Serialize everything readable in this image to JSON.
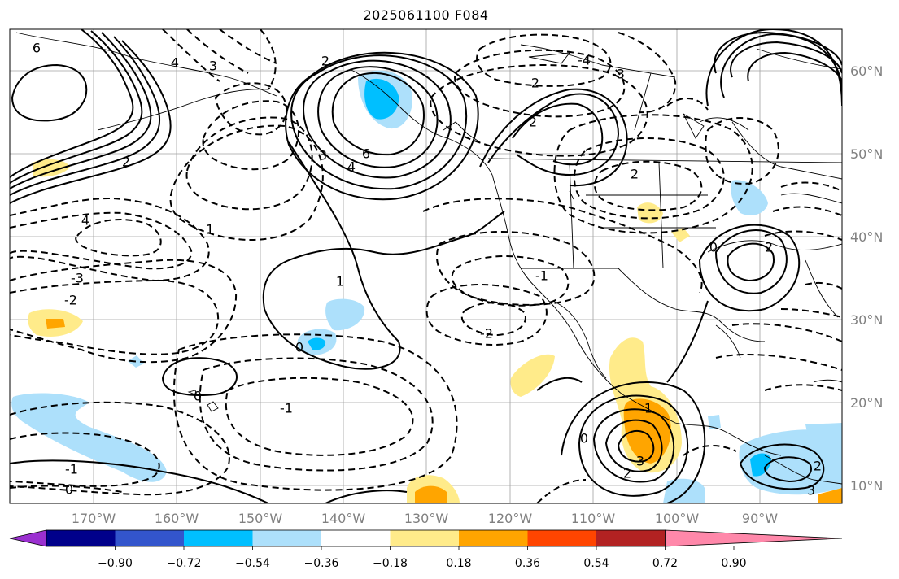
{
  "title": "2025061100 F084",
  "lat_labels": [
    "60°N",
    "50°N",
    "40°N",
    "30°N",
    "20°N",
    "10°N"
  ],
  "lon_labels": [
    "170°W",
    "160°W",
    "150°W",
    "140°W",
    "130°W",
    "120°W",
    "110°W",
    "100°W",
    "90°W"
  ],
  "colorbar": {
    "ticks": [
      "−0.90",
      "−0.72",
      "−0.54",
      "−0.36",
      "−0.18",
      "0.18",
      "0.36",
      "0.54",
      "0.72",
      "0.90"
    ],
    "colors": [
      "#9b30d0",
      "#00008b",
      "#3355cc",
      "#00bfff",
      "#ade0fb",
      "#ffffff",
      "#ffeb8a",
      "#ffa500",
      "#ff4500",
      "#b22222",
      "#ff88aa"
    ]
  },
  "contour_labels": [
    {
      "text": "6"
    },
    {
      "text": "4"
    },
    {
      "text": "3"
    },
    {
      "text": "2"
    },
    {
      "text": "2"
    },
    {
      "text": "-4"
    },
    {
      "text": "-3"
    },
    {
      "text": "2"
    },
    {
      "text": "6"
    },
    {
      "text": "4"
    },
    {
      "text": "3"
    },
    {
      "text": "2"
    },
    {
      "text": "2"
    },
    {
      "text": "2"
    },
    {
      "text": "-3"
    },
    {
      "text": "-2"
    },
    {
      "text": "4"
    },
    {
      "text": "1"
    },
    {
      "text": "1"
    },
    {
      "text": "0"
    },
    {
      "text": "-2"
    },
    {
      "text": "-1"
    },
    {
      "text": "-1"
    },
    {
      "text": "0"
    },
    {
      "text": "-1"
    },
    {
      "text": "0"
    },
    {
      "text": "2"
    },
    {
      "text": "3"
    },
    {
      "text": "1"
    },
    {
      "text": "0"
    },
    {
      "text": "2"
    },
    {
      "text": "0"
    },
    {
      "text": "3"
    }
  ]
}
